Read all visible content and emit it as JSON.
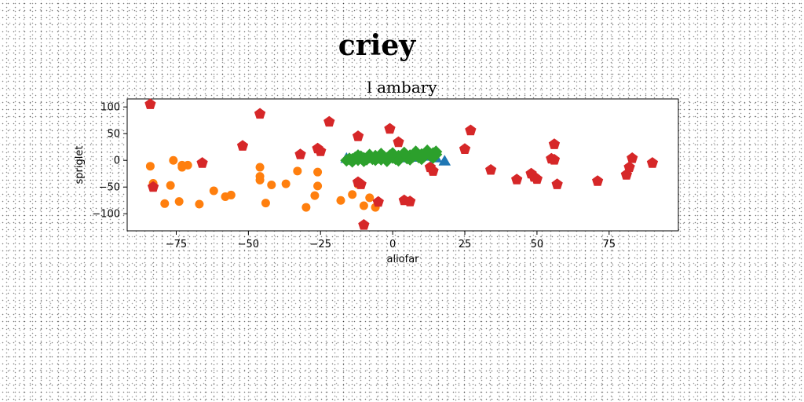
{
  "chart_data": {
    "type": "scatter",
    "title": "criey",
    "subtitle": "l ambary",
    "xlabel": "aliofar",
    "ylabel": "spriglet",
    "xlim": [
      -92,
      99
    ],
    "ylim": [
      -132,
      115
    ],
    "xticks": [
      -75,
      -50,
      -25,
      0,
      25,
      50,
      75
    ],
    "yticks": [
      100,
      50,
      0,
      -50,
      -100
    ],
    "xtick_labels": [
      "−75",
      "−50",
      "−25",
      "0",
      "25",
      "50",
      "75"
    ],
    "ytick_labels": [
      "100",
      "50",
      "0",
      "−50",
      "−100"
    ],
    "grid": false,
    "colors": {
      "orange": "#ff7f0e",
      "red": "#d62728",
      "green": "#2ca02c",
      "blue": "#1f77b4"
    },
    "series": [
      {
        "marker": "circle",
        "color": "#ff7f0e",
        "points": [
          [
            -84,
            -11
          ],
          [
            -83,
            -43
          ],
          [
            -79,
            -81
          ],
          [
            -77,
            -47
          ],
          [
            -76,
            0
          ],
          [
            -74,
            -77
          ],
          [
            -73,
            -13
          ],
          [
            -73,
            -9
          ],
          [
            -71,
            -9
          ],
          [
            -67,
            -82
          ],
          [
            -66,
            -5
          ],
          [
            -62,
            -57
          ],
          [
            -58,
            -68
          ],
          [
            -56,
            -65
          ],
          [
            -46,
            -13
          ],
          [
            -46,
            -30
          ],
          [
            -46,
            -37
          ],
          [
            -44,
            -80
          ],
          [
            -42,
            -46
          ],
          [
            -37,
            -44
          ],
          [
            -33,
            -20
          ],
          [
            -30,
            -88
          ],
          [
            -27,
            -66
          ],
          [
            -26,
            -48
          ],
          [
            -26,
            -22
          ],
          [
            -18,
            -75
          ],
          [
            -14,
            -64
          ],
          [
            -12,
            -45
          ],
          [
            -10,
            -85
          ],
          [
            -8,
            -70
          ],
          [
            -6,
            -88
          ]
        ]
      },
      {
        "marker": "pentagon",
        "color": "#d62728",
        "points": [
          [
            -84,
            105
          ],
          [
            -83,
            -50
          ],
          [
            -66,
            -5
          ],
          [
            -52,
            27
          ],
          [
            -46,
            87
          ],
          [
            -32,
            11
          ],
          [
            -26,
            22
          ],
          [
            -25,
            17
          ],
          [
            -22,
            72
          ],
          [
            -12,
            45
          ],
          [
            -12,
            -41
          ],
          [
            -11,
            -45
          ],
          [
            -10,
            -121
          ],
          [
            -5,
            -78
          ],
          [
            -1,
            59
          ],
          [
            2,
            34
          ],
          [
            4,
            -75
          ],
          [
            6,
            -77
          ],
          [
            13,
            -13
          ],
          [
            14,
            -20
          ],
          [
            25,
            21
          ],
          [
            27,
            56
          ],
          [
            34,
            -18
          ],
          [
            43,
            -36
          ],
          [
            48,
            -25
          ],
          [
            49,
            -31
          ],
          [
            50,
            -35
          ],
          [
            55,
            3
          ],
          [
            56,
            1
          ],
          [
            56,
            30
          ],
          [
            57,
            -45
          ],
          [
            71,
            -39
          ],
          [
            81,
            -27
          ],
          [
            82,
            -13
          ],
          [
            83,
            4
          ],
          [
            90,
            -5
          ]
        ]
      },
      {
        "marker": "triangle",
        "color": "#1f77b4",
        "points": [
          [
            -16,
            2
          ],
          [
            -12,
            4
          ],
          [
            -8,
            3
          ],
          [
            -4,
            2
          ],
          [
            0,
            2
          ],
          [
            4,
            3
          ],
          [
            8,
            4
          ],
          [
            12,
            6
          ],
          [
            15,
            3
          ],
          [
            18,
            -3
          ]
        ]
      },
      {
        "marker": "diamond",
        "color": "#2ca02c",
        "points": [
          [
            -16,
            0
          ],
          [
            -15,
            3
          ],
          [
            -14,
            2
          ],
          [
            -13,
            5
          ],
          [
            -12,
            1
          ],
          [
            -11,
            7
          ],
          [
            -10,
            4
          ],
          [
            -9,
            2
          ],
          [
            -8,
            6
          ],
          [
            -7,
            3
          ],
          [
            -6,
            8
          ],
          [
            -5,
            5
          ],
          [
            -4,
            2
          ],
          [
            -3,
            7
          ],
          [
            -2,
            4
          ],
          [
            -1,
            9
          ],
          [
            0,
            5
          ],
          [
            1,
            3
          ],
          [
            2,
            8
          ],
          [
            3,
            6
          ],
          [
            4,
            10
          ],
          [
            5,
            4
          ],
          [
            6,
            9
          ],
          [
            7,
            7
          ],
          [
            8,
            12
          ],
          [
            9,
            6
          ],
          [
            10,
            11
          ],
          [
            11,
            8
          ],
          [
            12,
            14
          ],
          [
            13,
            9
          ],
          [
            14,
            13
          ],
          [
            15,
            11
          ],
          [
            -14,
            -2
          ],
          [
            -10,
            -1
          ],
          [
            -6,
            1
          ],
          [
            -2,
            -1
          ],
          [
            2,
            0
          ],
          [
            6,
            2
          ],
          [
            10,
            3
          ],
          [
            14,
            5
          ],
          [
            -12,
            9
          ],
          [
            -8,
            10
          ],
          [
            -4,
            12
          ],
          [
            0,
            13
          ],
          [
            4,
            14
          ],
          [
            8,
            16
          ],
          [
            12,
            18
          ],
          [
            15,
            16
          ]
        ]
      }
    ]
  }
}
